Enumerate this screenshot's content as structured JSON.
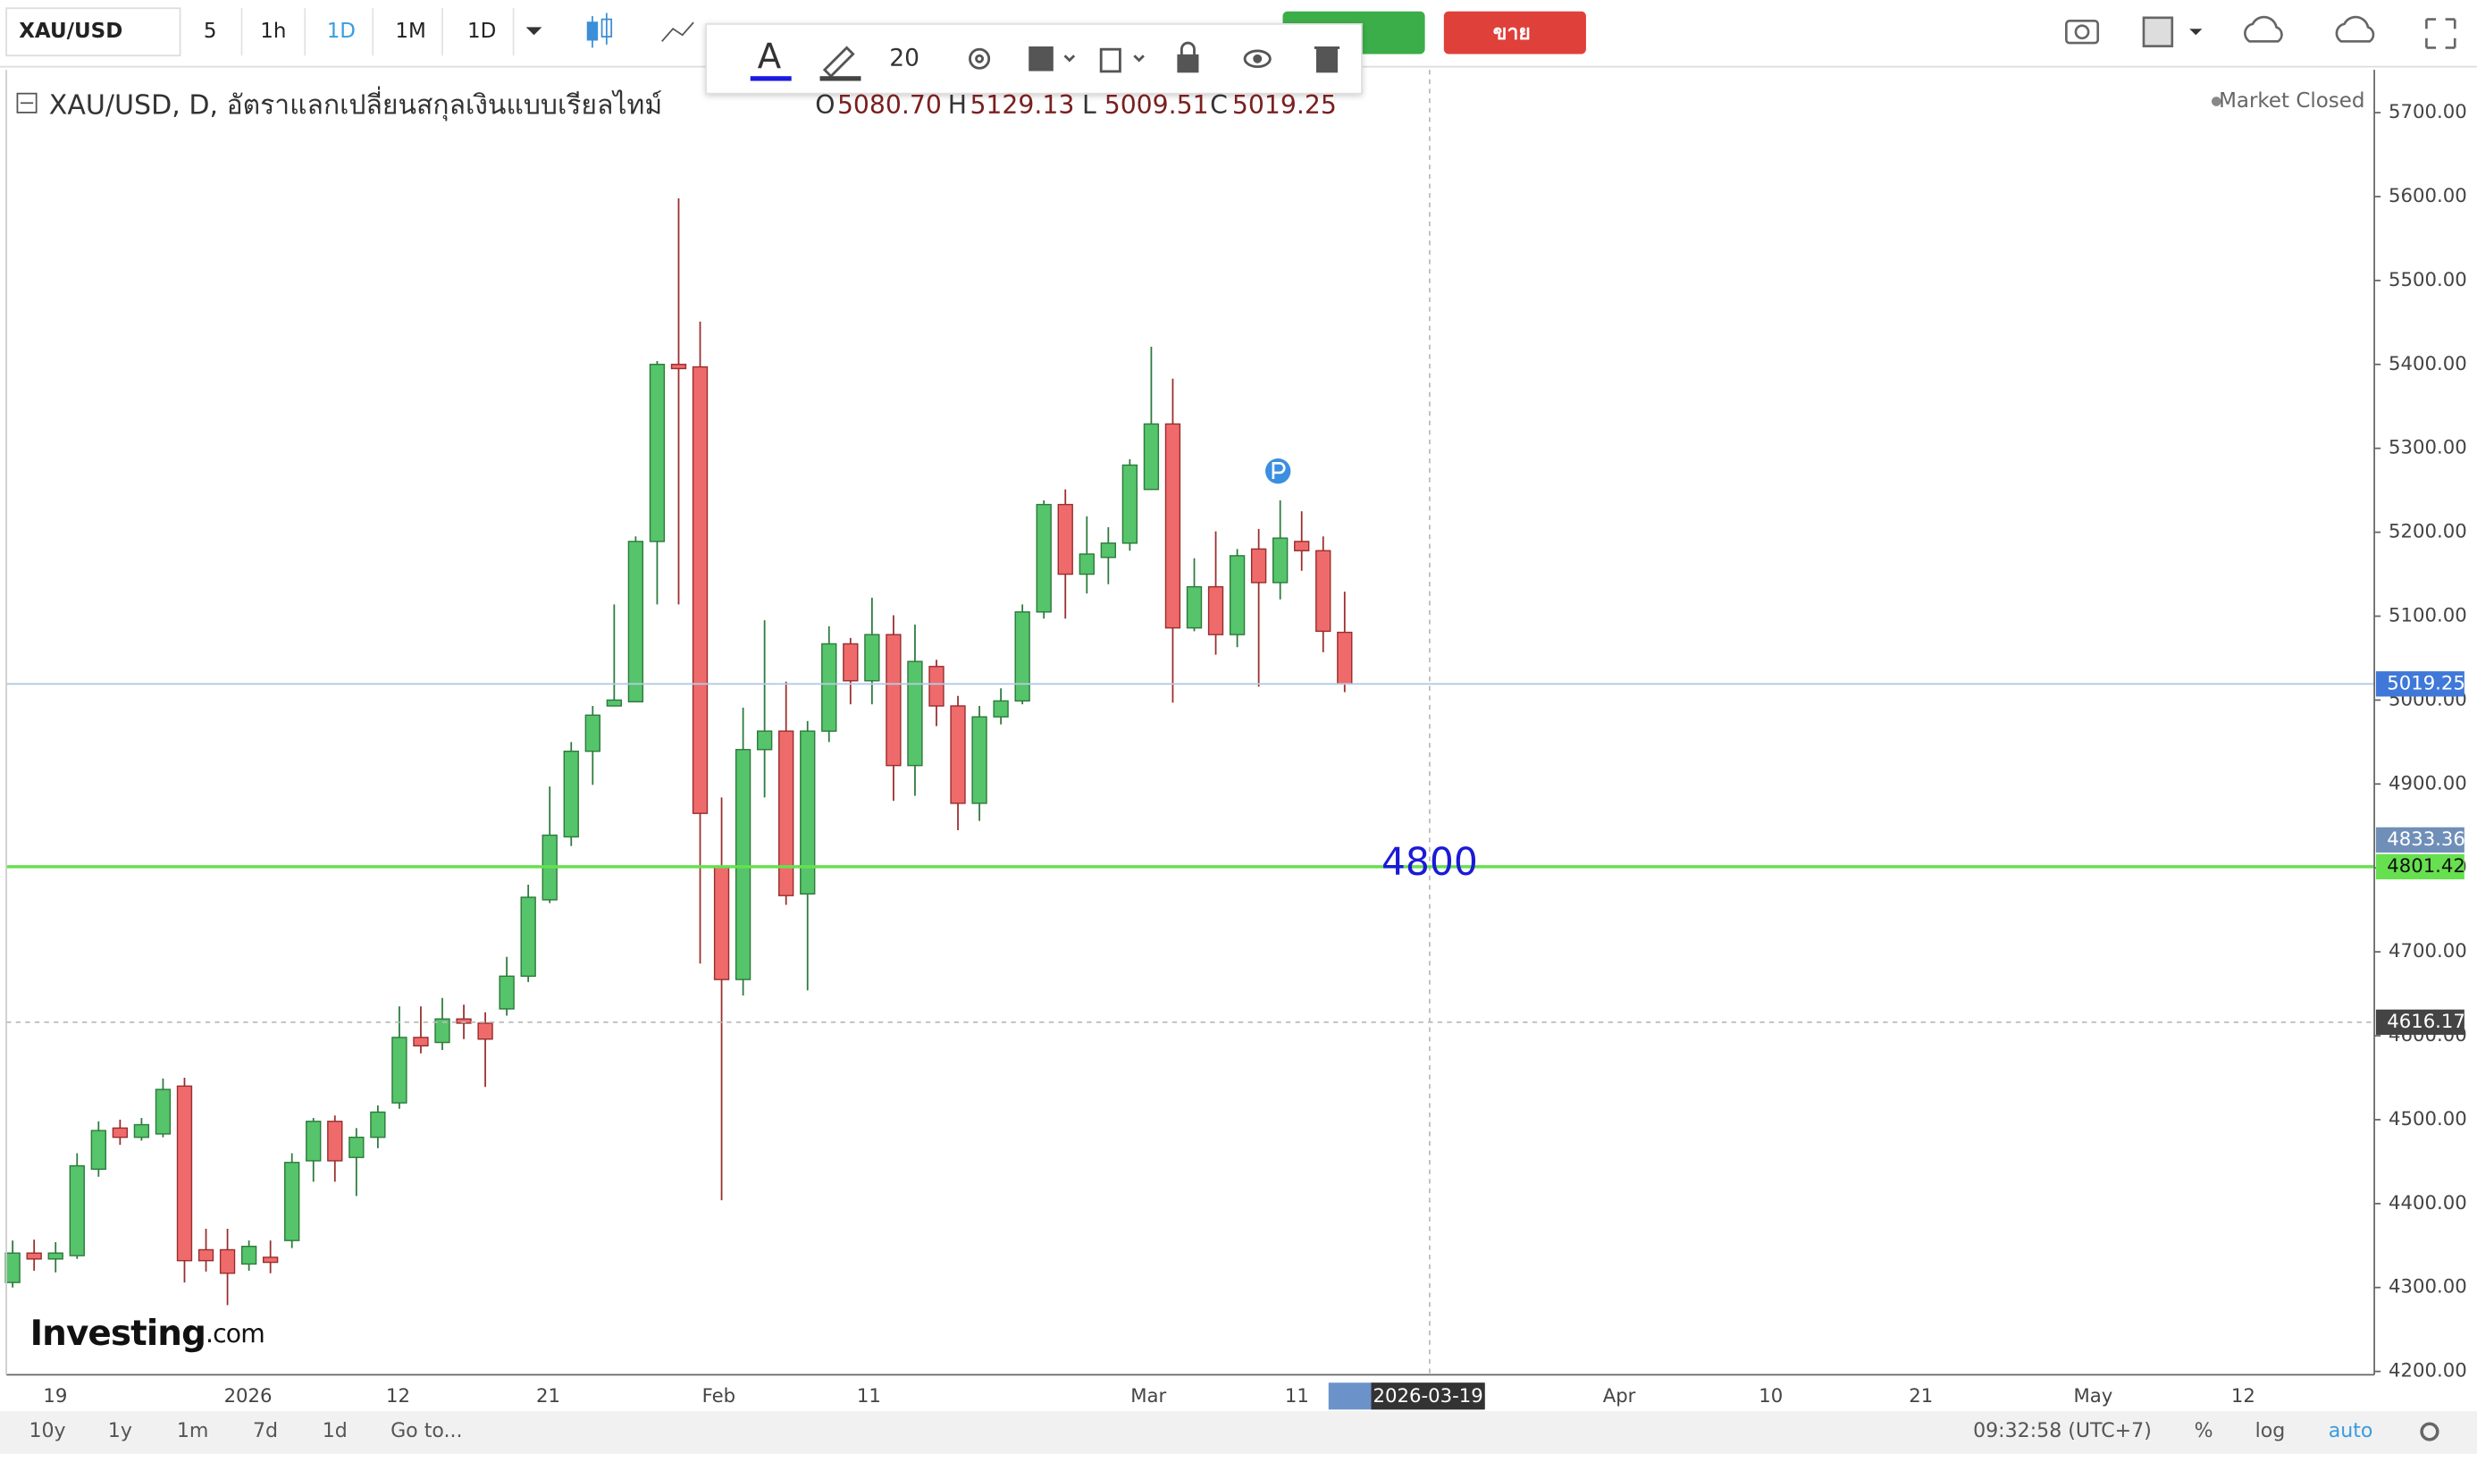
{
  "toolbar": {
    "symbol": "XAU/USD",
    "intervals": [
      "5",
      "1h",
      "1D",
      "1M",
      "1D"
    ],
    "sell": "ขาย",
    "font_size": "20"
  },
  "legend": {
    "title": "XAU/USD, D, อัตราแลกเปลี่ยนสกุลเงินแบบเรียลไทม์",
    "ohlc": [
      {
        "key": "O",
        "value": "5080.70"
      },
      {
        "key": "H",
        "value": "5129.13"
      },
      {
        "key": "L",
        "value": "5009.51"
      },
      {
        "key": "C",
        "value": "5019.25"
      }
    ],
    "status": "Market Closed"
  },
  "logo": {
    "name": "Investing",
    "suffix": ".com"
  },
  "chart_data": {
    "type": "candlestick",
    "up_color": "#56c46a",
    "down_color": "#ef6b6b",
    "open": [
      4306,
      4341,
      4334,
      4338,
      4441,
      4490,
      4479,
      4483,
      4540,
      4345,
      4345,
      4328,
      4336,
      4356,
      4451,
      4498,
      4455,
      4479,
      4520,
      4598,
      4592,
      4620,
      4615,
      4632,
      4671,
      4762,
      4837,
      4939,
      4993,
      4998,
      5189,
      5400,
      5397,
      4801,
      4667,
      4941,
      4963,
      4769,
      4963,
      5067,
      5023,
      5078,
      4922,
      5040,
      4993,
      4877,
      4980,
      4999,
      5105,
      5233,
      5150,
      5170,
      5187,
      5251,
      5329,
      5086,
      5135,
      5078,
      5180,
      5140,
      5189,
      5178,
      5080.7
    ],
    "high": [
      4356,
      4357,
      4354,
      4460,
      4498,
      4500,
      4502,
      4549,
      4550,
      4370,
      4370,
      4356,
      4356,
      4460,
      4502,
      4505,
      4490,
      4517,
      4635,
      4635,
      4645,
      4637,
      4628,
      4694,
      4780,
      4897,
      4950,
      4993,
      5114,
      5195,
      5404,
      5598,
      5451,
      4884,
      4991,
      5095,
      5022,
      4975,
      5088,
      5074,
      5122,
      5101,
      5090,
      5048,
      5005,
      4993,
      5014,
      5114,
      5238,
      5251,
      5219,
      5206,
      5287,
      5421,
      5383,
      5169,
      5201,
      5180,
      5204,
      5238,
      5225,
      5195,
      5129.13
    ],
    "low": [
      4300,
      4320,
      4318,
      4334,
      4432,
      4470,
      4475,
      4479,
      4306,
      4319,
      4279,
      4320,
      4317,
      4347,
      4426,
      4426,
      4409,
      4466,
      4513,
      4579,
      4583,
      4596,
      4539,
      4624,
      4664,
      4758,
      4826,
      4899,
      4997,
      4999,
      5114,
      5114,
      4686,
      4404,
      4648,
      4884,
      4756,
      4654,
      4950,
      4995,
      4995,
      4880,
      4886,
      4969,
      4845,
      4856,
      4971,
      4995,
      5097,
      5097,
      5127,
      5138,
      5178,
      5265,
      4997,
      5082,
      5054,
      5063,
      5016,
      5120,
      5154,
      5057,
      5009.51
    ],
    "close": [
      4341,
      4334,
      4341,
      4445,
      4487,
      4479,
      4494,
      4536,
      4332,
      4332,
      4317,
      4349,
      4330,
      4449,
      4498,
      4451,
      4479,
      4509,
      4598,
      4588,
      4620,
      4615,
      4596,
      4671,
      4765,
      4839,
      4939,
      4982,
      5000,
      5189,
      5400,
      5395,
      4865,
      4667,
      4941,
      4963,
      4767,
      4963,
      5067,
      5023,
      5078,
      4922,
      5046,
      4993,
      4877,
      4980,
      4999,
      5105,
      5233,
      5150,
      5174,
      5187,
      5280,
      5329,
      5086,
      5135,
      5078,
      5172,
      5140,
      5193,
      5178,
      5082,
      5019.25
    ],
    "ylim": [
      4196,
      5751
    ],
    "yticks": [
      {
        "value": 4200,
        "label": "4200.00"
      },
      {
        "value": 4300,
        "label": "4300.00"
      },
      {
        "value": 4400,
        "label": "4400.00"
      },
      {
        "value": 4500,
        "label": "4500.00"
      },
      {
        "value": 4600,
        "label": "4600.00"
      },
      {
        "value": 4700,
        "label": "4700.00"
      },
      {
        "value": 4800,
        "label": "4800.00"
      },
      {
        "value": 4900,
        "label": "4900.00"
      },
      {
        "value": 5000,
        "label": "5000.00"
      },
      {
        "value": 5100,
        "label": "5100.00"
      },
      {
        "value": 5200,
        "label": "5200.00"
      },
      {
        "value": 5300,
        "label": "5300.00"
      },
      {
        "value": 5400,
        "label": "5400.00"
      },
      {
        "value": 5500,
        "label": "5500.00"
      },
      {
        "value": 5600,
        "label": "5600.00"
      },
      {
        "value": 5700,
        "label": "5700.00"
      }
    ],
    "x_labels": [
      "19",
      "2026",
      "12",
      "21",
      "Feb",
      "11",
      "Mar",
      "11",
      "Apr",
      "10",
      "21",
      "May",
      "12"
    ],
    "markers": [
      {
        "value": 5019.25,
        "color": "#3f78d8",
        "line": "solid",
        "line_color": "#b3cbe3"
      },
      {
        "value": 4833.36,
        "color": "#6f8fb8",
        "line": "none",
        "line_color": "#6f8fb8"
      },
      {
        "value": 4801.42,
        "color": "#66e04f",
        "line": "solid",
        "line_color": "#66e04f"
      },
      {
        "value": 4616.17,
        "color": "#444444",
        "line": "dashed",
        "line_color": "#bbbbbb"
      }
    ],
    "annotation": "4800",
    "crosshair_date": "2026-03-19"
  },
  "bottom_bar": {
    "ranges": [
      "10y",
      "1y",
      "1m",
      "7d",
      "1d",
      "Go to..."
    ],
    "time": "09:32:58 (UTC+7)",
    "options": [
      "%",
      "log",
      "auto"
    ]
  }
}
